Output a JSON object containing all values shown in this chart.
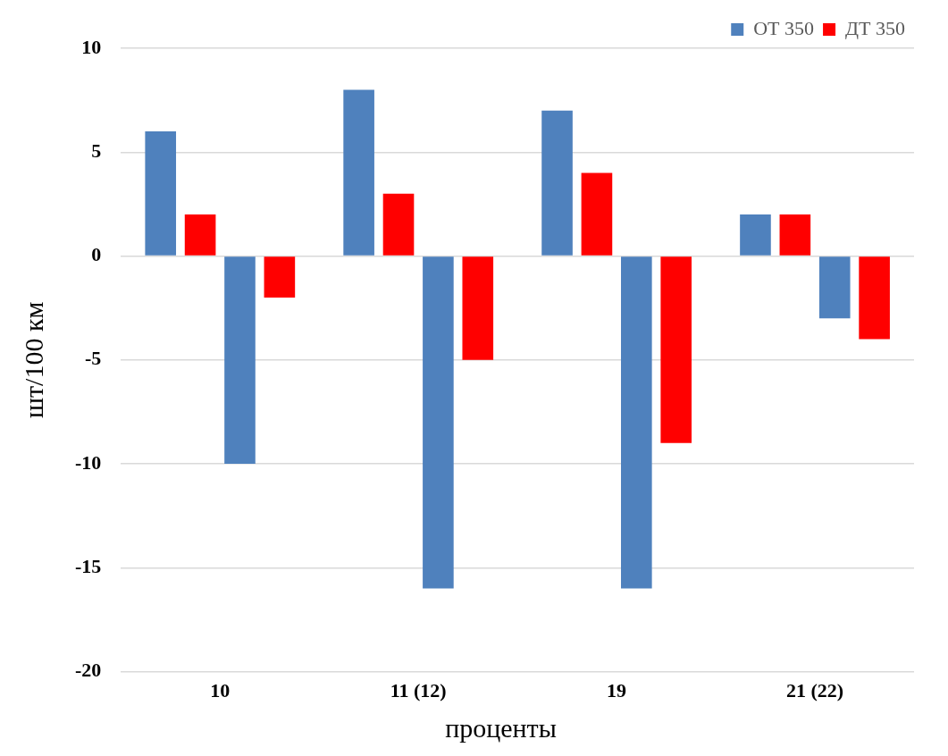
{
  "chart_data": {
    "type": "bar",
    "xlabel": "проценты",
    "ylabel": "шт/100 км",
    "categories": [
      "10",
      "11 (12)",
      "19",
      "21 (22)"
    ],
    "series": [
      {
        "name": "ОТ 350",
        "color": "#4f81bd",
        "values": [
          6,
          8,
          7,
          2
        ]
      },
      {
        "name": "ДТ 350",
        "color": "#ff0000",
        "values": [
          2,
          3,
          4,
          2
        ]
      },
      {
        "color": "#4f81bd",
        "values": [
          -10,
          -16,
          -16,
          -3
        ]
      },
      {
        "color": "#ff0000",
        "values": [
          -2,
          -5,
          -9,
          -4
        ]
      }
    ],
    "ylim": [
      -20,
      10
    ],
    "yticks": [
      -20,
      -15,
      -10,
      -5,
      0,
      5,
      10
    ],
    "grid": "y",
    "legend": "top right"
  }
}
